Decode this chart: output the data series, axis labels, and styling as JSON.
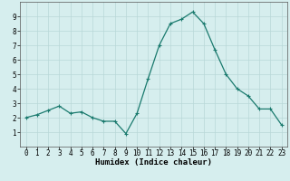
{
  "x": [
    0,
    1,
    2,
    3,
    4,
    5,
    6,
    7,
    8,
    9,
    10,
    11,
    12,
    13,
    14,
    15,
    16,
    17,
    18,
    19,
    20,
    21,
    22,
    23
  ],
  "y": [
    2.0,
    2.2,
    2.5,
    2.8,
    2.3,
    2.4,
    2.0,
    1.75,
    1.75,
    0.9,
    2.3,
    4.7,
    7.0,
    8.5,
    8.8,
    9.3,
    8.5,
    6.7,
    5.0,
    4.0,
    3.5,
    2.6,
    2.6,
    1.5
  ],
  "xlabel": "Humidex (Indice chaleur)",
  "xlim": [
    -0.5,
    23.5
  ],
  "ylim": [
    0,
    10
  ],
  "yticks": [
    1,
    2,
    3,
    4,
    5,
    6,
    7,
    8,
    9
  ],
  "xticks": [
    0,
    1,
    2,
    3,
    4,
    5,
    6,
    7,
    8,
    9,
    10,
    11,
    12,
    13,
    14,
    15,
    16,
    17,
    18,
    19,
    20,
    21,
    22,
    23
  ],
  "line_color": "#1a7a6e",
  "marker": "+",
  "marker_size": 3,
  "bg_color": "#d6eeee",
  "grid_color": "#b8d8d8",
  "xlabel_fontsize": 6.5,
  "tick_fontsize": 5.5
}
